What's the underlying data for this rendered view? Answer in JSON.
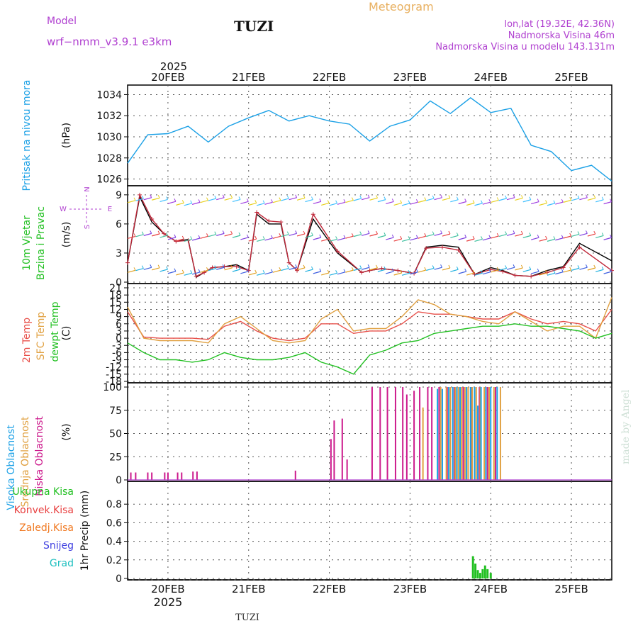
{
  "header": {
    "model_label": "Model",
    "model_name": "wrf−nmm_v3.9.1  e3km",
    "station": "TUZI",
    "title": "Meteogram",
    "lonlat": "lon,lat (19.32E, 42.36N)",
    "elevation": "Nadmorska Visina 46m",
    "model_elevation": "Nadmorska Visina u modelu 143.131m",
    "footer_station": "TUZI",
    "credit": "made by Angel"
  },
  "colors": {
    "pressure": "#1aa0e6",
    "wind_obs": "#000000",
    "wind_model": "#c0283a",
    "t2m": "#e8504a",
    "sfc": "#e0a040",
    "dewpt": "#22c022",
    "high_cloud": "#1aa0e6",
    "mid_cloud": "#e0a040",
    "low_cloud": "#cc1a8c",
    "total_precip": "#22c022",
    "conv_precip": "#e84040",
    "frozen_precip": "#f07820",
    "snow": "#4040e0",
    "hail": "#20c0c0",
    "grid": "#555555",
    "magenta": "#b040d0"
  },
  "chart_data": [
    {
      "type": "line",
      "panel": "pressure",
      "ylabel_left": "Pritisak na nivou mora",
      "ylabel_unit": "(hPa)",
      "ylim": [
        1025.5,
        1034.5
      ],
      "yticks": [
        1026,
        1028,
        1030,
        1032,
        1034
      ],
      "x": [
        0.0,
        0.25,
        0.5,
        0.75,
        1.0,
        1.25,
        1.5,
        1.75,
        2.0,
        2.25,
        2.5,
        2.75,
        3.0,
        3.25,
        3.5,
        3.75,
        4.0,
        4.25,
        4.5,
        4.75,
        5.0,
        5.25,
        5.5,
        5.75,
        6.0
      ],
      "series": [
        {
          "name": "MSLP",
          "values": [
            1027.5,
            1030.2,
            1030.3,
            1031.0,
            1029.5,
            1031.0,
            1031.8,
            1032.5,
            1031.5,
            1032.0,
            1031.5,
            1031.2,
            1029.6,
            1031.0,
            1031.6,
            1033.4,
            1032.2,
            1033.7,
            1032.3,
            1032.7,
            1029.2,
            1028.6,
            1026.8,
            1027.3,
            1025.8
          ]
        }
      ]
    },
    {
      "type": "line",
      "panel": "wind",
      "ylabel_left": [
        "10m Vjetar",
        "Brzina i Pravac"
      ],
      "ylabel_unit": "(m/s)",
      "compass": [
        "N",
        "S",
        "W",
        "E"
      ],
      "ylim": [
        0,
        9.5
      ],
      "yticks": [
        0,
        3,
        6,
        9
      ],
      "x": [
        0.0,
        0.15,
        0.3,
        0.45,
        0.6,
        0.75,
        0.85,
        0.95,
        1.05,
        1.2,
        1.35,
        1.5,
        1.6,
        1.75,
        1.9,
        2.0,
        2.1,
        2.3,
        2.6,
        2.9,
        3.0,
        3.15,
        3.35,
        3.55,
        3.7,
        3.9,
        4.1,
        4.3,
        4.5,
        4.65,
        4.8,
        5.0,
        5.2,
        5.4,
        5.6,
        6.0
      ],
      "series": [
        {
          "name": "Brzina",
          "values": [
            2.0,
            8.8,
            6.2,
            5.0,
            4.2,
            4.4,
            0.5,
            1.0,
            1.5,
            1.6,
            1.8,
            1.2,
            7.0,
            6.0,
            6.0,
            2.0,
            1.2,
            6.5,
            3.0,
            1.0,
            1.2,
            1.4,
            1.2,
            0.9,
            3.6,
            3.8,
            3.6,
            0.8,
            1.5,
            1.2,
            0.7,
            0.6,
            1.2,
            1.6,
            4.0,
            2.2
          ]
        },
        {
          "name": "Model",
          "values": [
            2.0,
            9.0,
            6.5,
            5.0,
            4.2,
            4.3,
            0.6,
            1.0,
            1.5,
            1.6,
            1.6,
            1.2,
            7.2,
            6.3,
            6.2,
            2.0,
            1.2,
            7.0,
            3.2,
            1.0,
            1.2,
            1.4,
            1.2,
            0.9,
            3.5,
            3.6,
            3.3,
            0.8,
            1.3,
            1.1,
            0.7,
            0.6,
            1.0,
            1.5,
            3.6,
            1.2
          ]
        }
      ]
    },
    {
      "type": "line",
      "panel": "temperature",
      "ylabel_left": [
        "2m Temp",
        "SFC Temp",
        "dewpt Temp"
      ],
      "ylabel_unit": "(C)",
      "ylim": [
        -18,
        21
      ],
      "yticks": [
        -18,
        -15,
        -12,
        -9,
        -6,
        -3,
        0,
        3,
        6,
        9,
        12,
        15,
        18,
        21
      ],
      "x": [
        0.0,
        0.2,
        0.4,
        0.6,
        0.8,
        1.0,
        1.2,
        1.4,
        1.6,
        1.8,
        2.0,
        2.2,
        2.4,
        2.6,
        2.8,
        3.0,
        3.2,
        3.4,
        3.6,
        3.8,
        4.0,
        4.2,
        4.4,
        4.6,
        4.8,
        5.0,
        5.2,
        5.4,
        5.6,
        5.8,
        6.0
      ],
      "series": [
        {
          "name": "2m Temp",
          "values": [
            11,
            0.5,
            0,
            0,
            0,
            -0.5,
            5,
            7,
            3,
            0,
            -1,
            0,
            6,
            6,
            2,
            3,
            3,
            6,
            11,
            10,
            10,
            9,
            8,
            8,
            11,
            8,
            6,
            7,
            6,
            3,
            12
          ]
        },
        {
          "name": "SFC Temp",
          "values": [
            13,
            0,
            -1,
            -1,
            -1,
            -2,
            6,
            9,
            4,
            -1,
            -2,
            -1,
            8,
            12,
            3,
            4,
            4,
            9,
            16,
            14,
            10,
            9,
            7,
            6,
            11,
            7,
            3,
            5,
            5,
            0,
            17
          ]
        },
        {
          "name": "dewpt Temp",
          "values": [
            -2,
            -6,
            -9,
            -9,
            -10,
            -9,
            -6,
            -8,
            -9,
            -9,
            -8,
            -6,
            -10,
            -12,
            -15,
            -7,
            -5,
            -2,
            -1,
            2,
            3,
            4,
            5,
            5,
            6,
            5,
            5,
            4,
            3,
            0,
            2
          ]
        }
      ]
    },
    {
      "type": "bar",
      "panel": "cloud",
      "ylabel_left": [
        "Visoka Oblacnost",
        "Srednja Oblacnost",
        "Niska Oblacnost"
      ],
      "ylabel_unit": "(%)",
      "ylim": [
        0,
        100
      ],
      "yticks": [
        0,
        25,
        50,
        75,
        100
      ],
      "series": [
        {
          "name": "Niska Oblacnost",
          "x": [
            0.04,
            0.1,
            0.25,
            0.3,
            0.46,
            0.5,
            0.62,
            0.67,
            0.81,
            0.86,
            2.08,
            2.52,
            2.56,
            2.66,
            2.72,
            3.03,
            3.13,
            3.22,
            3.32,
            3.41,
            3.46,
            3.55,
            3.62,
            3.72,
            3.77,
            3.86,
            3.96,
            4.05,
            4.16,
            4.26,
            4.36,
            4.46,
            4.56
          ],
          "values": [
            8,
            8,
            8,
            8,
            8,
            8,
            8,
            8,
            9,
            9,
            10,
            44,
            64,
            66,
            22,
            100,
            100,
            100,
            100,
            100,
            92,
            96,
            100,
            100,
            100,
            100,
            100,
            100,
            100,
            100,
            100,
            100,
            100
          ]
        },
        {
          "name": "Srednja Oblacnost",
          "x": [
            3.66,
            3.88,
            3.95,
            4.0,
            4.06,
            4.1,
            4.14,
            4.18,
            4.22,
            4.27,
            4.32,
            4.37,
            4.42,
            4.48,
            4.54,
            4.62
          ],
          "values": [
            78,
            100,
            100,
            100,
            100,
            100,
            100,
            100,
            100,
            100,
            100,
            100,
            100,
            100,
            100,
            100
          ]
        },
        {
          "name": "Visoka Oblacnost",
          "x": [
            3.84,
            3.9,
            3.98,
            4.03,
            4.08,
            4.12,
            4.2,
            4.25,
            4.3,
            4.34,
            4.38,
            4.44,
            4.5,
            4.58
          ],
          "values": [
            98,
            98,
            100,
            100,
            100,
            100,
            100,
            100,
            100,
            80,
            100,
            100,
            100,
            100
          ]
        }
      ]
    },
    {
      "type": "bar",
      "panel": "precipitation",
      "ylabel_left": [
        "Ukupna Kisa",
        "Konvek.Kisa",
        "Zaledj.Kisa",
        "Snijeg",
        "Grad"
      ],
      "ylabel_unit": "1hr Precip (mm)",
      "ylim": [
        0,
        1.0
      ],
      "yticks": [
        0,
        0.2,
        0.4,
        0.6,
        0.8
      ],
      "series": [
        {
          "name": "Ukupna Kisa",
          "x": [
            4.28,
            4.31,
            4.34,
            4.37,
            4.4,
            4.43,
            4.46,
            4.5
          ],
          "values": [
            0.24,
            0.16,
            0.09,
            0.06,
            0.1,
            0.14,
            0.1,
            0.06
          ]
        }
      ]
    }
  ],
  "xaxis": {
    "year": "2025",
    "day_labels": [
      "20FEB",
      "21FEB",
      "22FEB",
      "23FEB",
      "24FEB",
      "25FEB"
    ],
    "day_positions": [
      0.5,
      1.5,
      2.5,
      3.5,
      4.5,
      5.5
    ],
    "xlim": [
      0.0,
      6.0
    ]
  }
}
